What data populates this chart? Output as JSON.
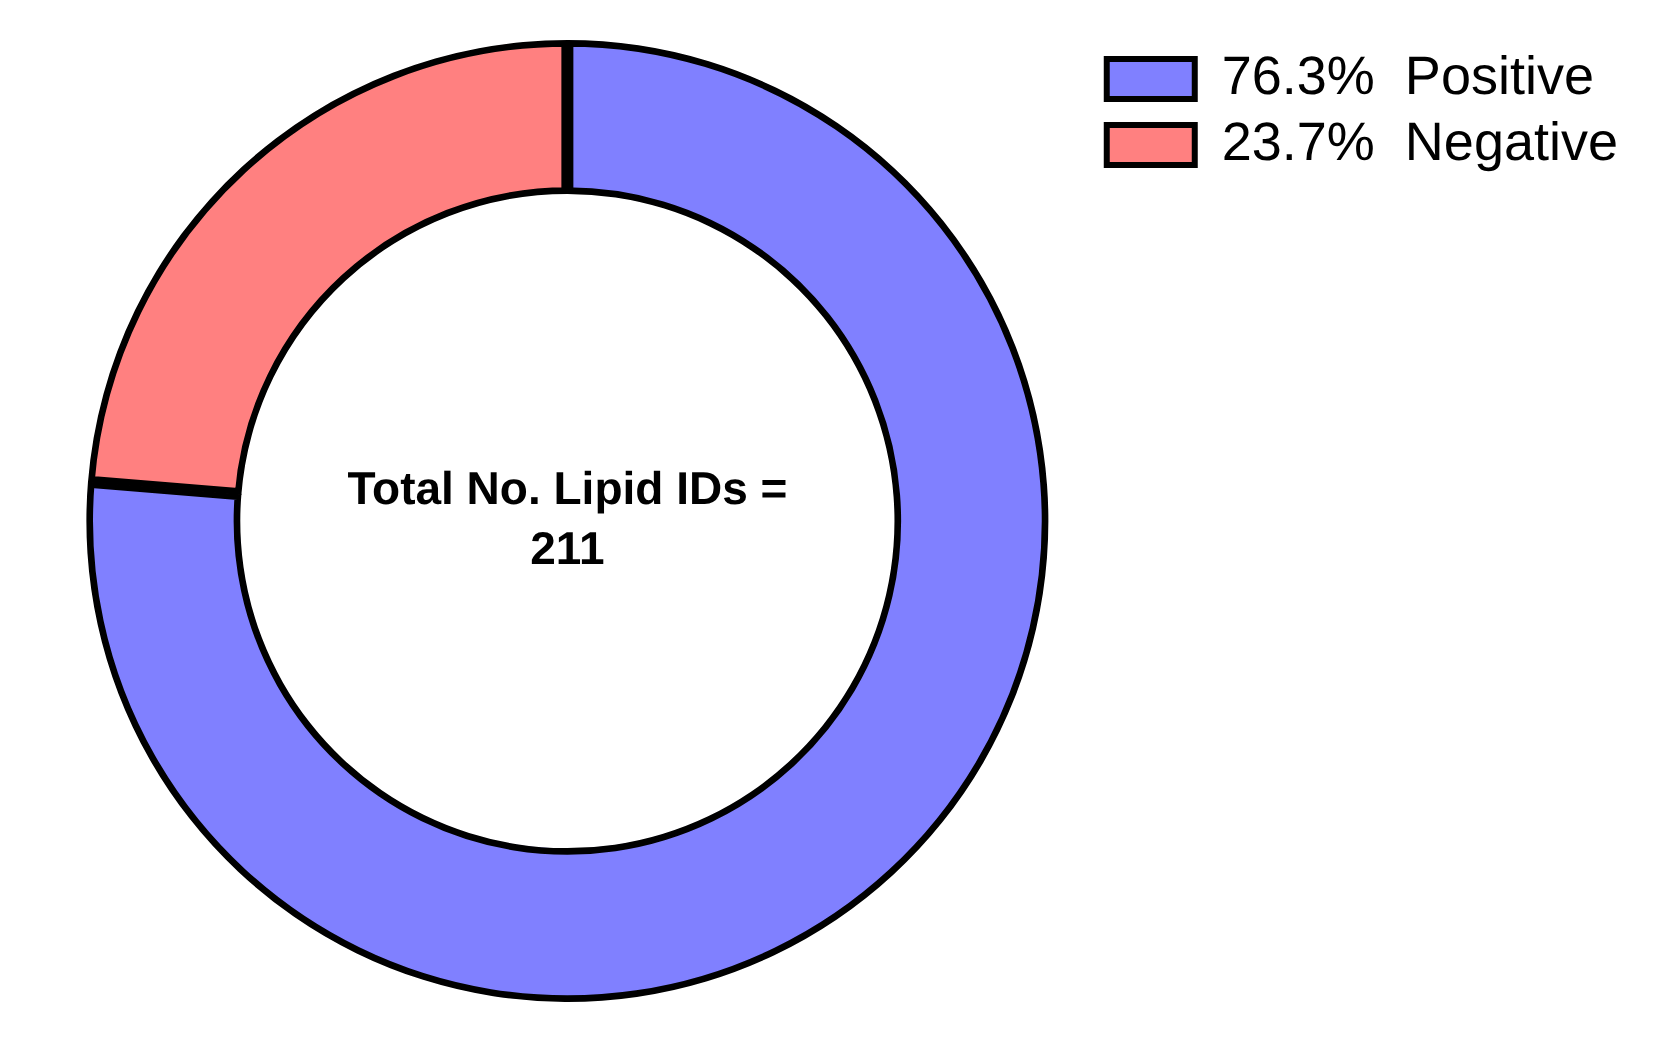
{
  "chart_data": {
    "type": "donut",
    "categories": [
      "Positive",
      "Negative"
    ],
    "values": [
      76.3,
      23.7
    ],
    "value_labels": [
      "76.3%",
      "23.7%"
    ],
    "colors": [
      "#8080ff",
      "#ff8080"
    ],
    "legend": "top right",
    "annotations": [
      "Total No. Lipid IDs = 211"
    ]
  }
}
